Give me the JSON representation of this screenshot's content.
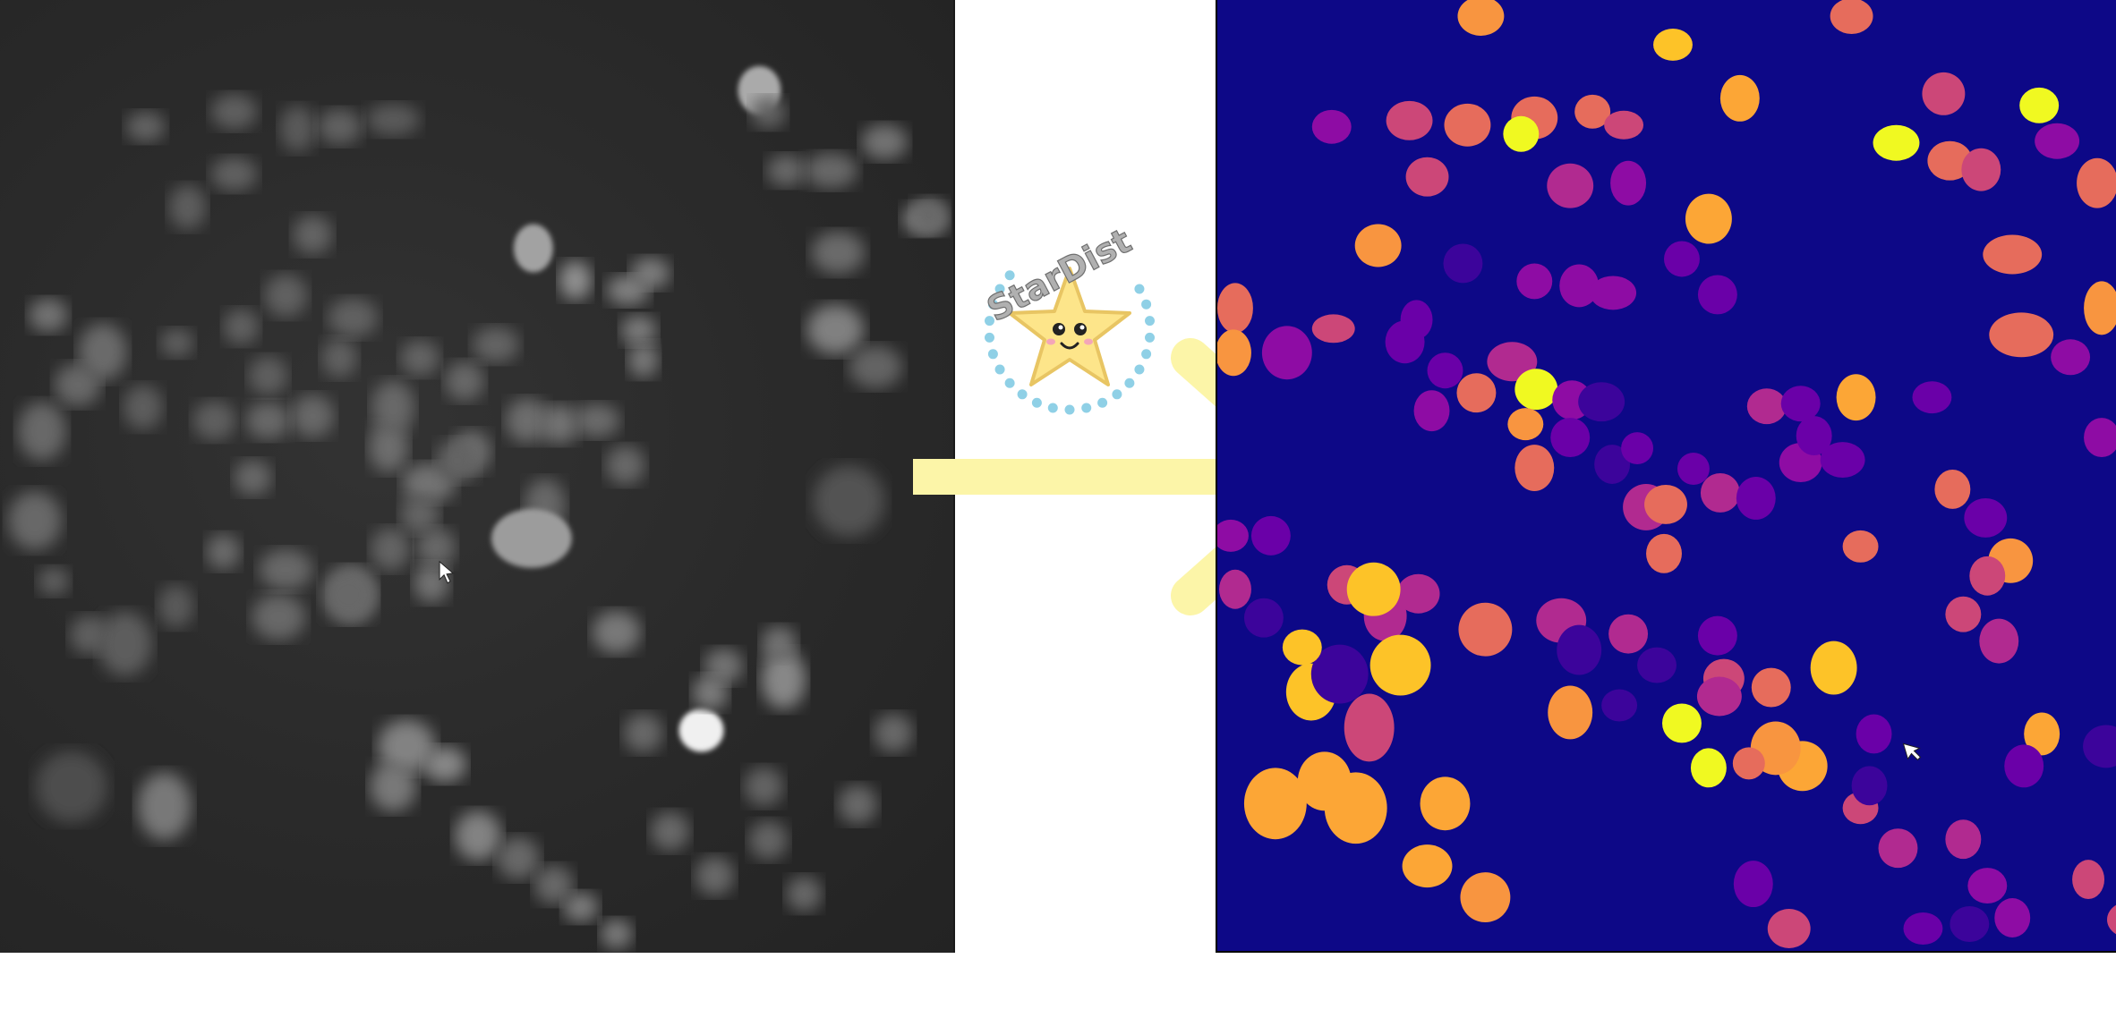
{
  "logo": {
    "text": "StarDist"
  },
  "colors": {
    "background": "#ffffff",
    "microscopy_bg": "#2a2a2a",
    "label_bg": "#0d0887",
    "arrow": "#fcf5a8",
    "star_fill": "#fde58a",
    "star_outline": "#e8c563",
    "dots": "#8fd0e6",
    "logo_text": "#9a9a9a"
  },
  "icons": {
    "left_cursor": "mouse-pointer-icon",
    "right_cursor": "mouse-pointer-icon",
    "arrow": "right-arrow-icon",
    "logo": "starfish-mascot-icon"
  }
}
